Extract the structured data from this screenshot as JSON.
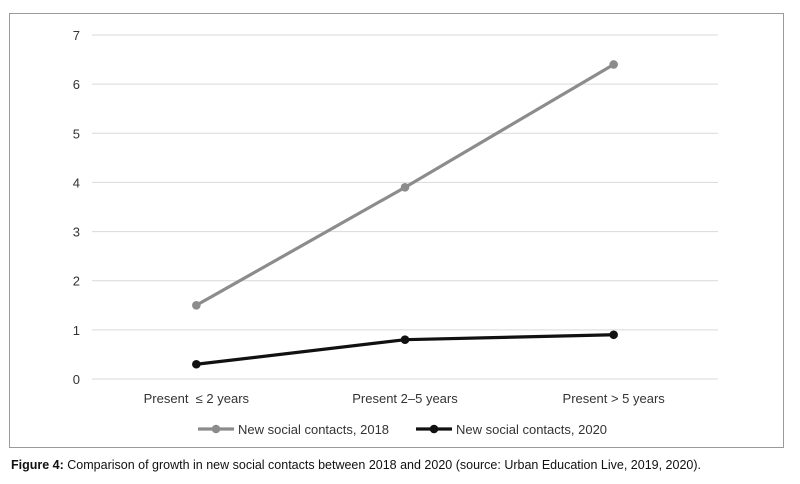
{
  "chart_data": {
    "type": "line",
    "categories": [
      "Present  ≤ 2 years",
      "Present 2–5 years",
      "Present > 5 years"
    ],
    "series": [
      {
        "name": "New social contacts, 2018",
        "values": [
          1.5,
          3.9,
          6.4
        ],
        "color": "#8c8c8c"
      },
      {
        "name": "New social contacts, 2020",
        "values": [
          0.3,
          0.8,
          0.9
        ],
        "color": "#111111"
      }
    ],
    "ylim": [
      0,
      7
    ],
    "yticks": [
      "0",
      "1",
      "2",
      "3",
      "4",
      "5",
      "6",
      "7"
    ],
    "grid": true,
    "legend": "bottom"
  },
  "caption": {
    "label": "Figure 4:",
    "text": " Comparison of growth in new social contacts between 2018 and 2020 (source: Urban Education Live, 2019, 2020)."
  }
}
